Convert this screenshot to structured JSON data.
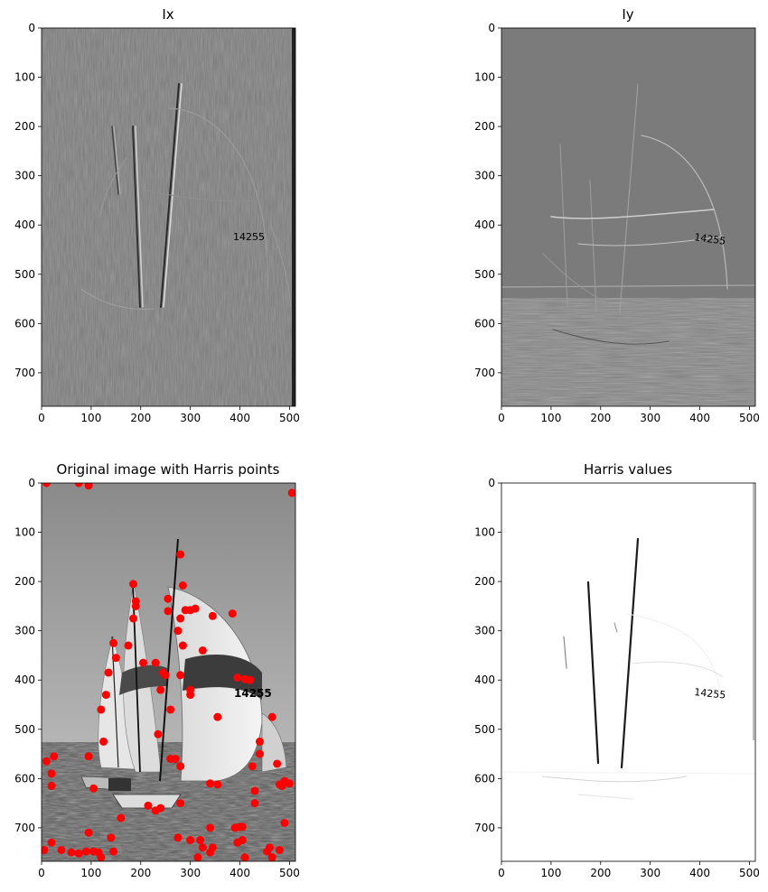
{
  "figure": {
    "panels": [
      {
        "id": "ix",
        "title": "Ix",
        "kind": "gradient-x",
        "x_range": [
          0,
          512
        ],
        "y_range": [
          0,
          768
        ],
        "x_ticks": [
          0,
          100,
          200,
          300,
          400,
          500
        ],
        "y_ticks": [
          0,
          100,
          200,
          300,
          400,
          500,
          600,
          700
        ]
      },
      {
        "id": "iy",
        "title": "Iy",
        "kind": "gradient-y",
        "x_range": [
          0,
          512
        ],
        "y_range": [
          0,
          768
        ],
        "x_ticks": [
          0,
          100,
          200,
          300,
          400,
          500
        ],
        "y_ticks": [
          0,
          100,
          200,
          300,
          400,
          500,
          600,
          700
        ]
      },
      {
        "id": "orig",
        "title": "Original image with Harris points",
        "kind": "original",
        "x_range": [
          0,
          512
        ],
        "y_range": [
          0,
          768
        ],
        "x_ticks": [
          0,
          100,
          200,
          300,
          400,
          500
        ],
        "y_ticks": [
          0,
          100,
          200,
          300,
          400,
          500,
          600,
          700
        ]
      },
      {
        "id": "harris",
        "title": "Harris values",
        "kind": "harris",
        "x_range": [
          0,
          512
        ],
        "y_range": [
          0,
          768
        ],
        "x_ticks": [
          0,
          100,
          200,
          300,
          400,
          500
        ],
        "y_ticks": [
          0,
          100,
          200,
          300,
          400,
          500,
          600,
          700
        ]
      }
    ]
  },
  "chart_data": {
    "type": "scatter",
    "series": [
      {
        "points": [
          [
            10,
            0
          ],
          [
            75,
            0
          ],
          [
            95,
            5
          ],
          [
            505,
            20
          ],
          [
            280,
            145
          ],
          [
            185,
            205
          ],
          [
            285,
            208
          ],
          [
            190,
            240
          ],
          [
            255,
            235
          ],
          [
            190,
            250
          ],
          [
            290,
            258
          ],
          [
            255,
            260
          ],
          [
            300,
            258
          ],
          [
            310,
            255
          ],
          [
            345,
            270
          ],
          [
            385,
            265
          ],
          [
            185,
            275
          ],
          [
            280,
            275
          ],
          [
            275,
            300
          ],
          [
            145,
            325
          ],
          [
            175,
            330
          ],
          [
            285,
            330
          ],
          [
            325,
            340
          ],
          [
            150,
            355
          ],
          [
            205,
            365
          ],
          [
            230,
            365
          ],
          [
            135,
            385
          ],
          [
            245,
            385
          ],
          [
            250,
            390
          ],
          [
            280,
            390
          ],
          [
            395,
            395
          ],
          [
            410,
            398
          ],
          [
            420,
            400
          ],
          [
            240,
            420
          ],
          [
            300,
            420
          ],
          [
            300,
            430
          ],
          [
            130,
            430
          ],
          [
            120,
            460
          ],
          [
            260,
            460
          ],
          [
            355,
            475
          ],
          [
            465,
            475
          ],
          [
            235,
            510
          ],
          [
            125,
            525
          ],
          [
            440,
            525
          ],
          [
            440,
            550
          ],
          [
            25,
            555
          ],
          [
            95,
            555
          ],
          [
            260,
            560
          ],
          [
            270,
            560
          ],
          [
            10,
            565
          ],
          [
            475,
            570
          ],
          [
            280,
            575
          ],
          [
            425,
            575
          ],
          [
            20,
            590
          ],
          [
            490,
            605
          ],
          [
            500,
            610
          ],
          [
            480,
            612
          ],
          [
            485,
            615
          ],
          [
            340,
            610
          ],
          [
            355,
            612
          ],
          [
            20,
            615
          ],
          [
            105,
            620
          ],
          [
            430,
            625
          ],
          [
            430,
            650
          ],
          [
            280,
            650
          ],
          [
            215,
            655
          ],
          [
            230,
            665
          ],
          [
            240,
            660
          ],
          [
            160,
            680
          ],
          [
            340,
            700
          ],
          [
            390,
            700
          ],
          [
            400,
            698
          ],
          [
            405,
            698
          ],
          [
            490,
            690
          ],
          [
            95,
            710
          ],
          [
            275,
            720
          ],
          [
            300,
            725
          ],
          [
            405,
            725
          ],
          [
            140,
            720
          ],
          [
            20,
            730
          ],
          [
            395,
            730
          ],
          [
            320,
            725
          ],
          [
            325,
            740
          ],
          [
            345,
            740
          ],
          [
            40,
            745
          ],
          [
            90,
            748
          ],
          [
            105,
            748
          ],
          [
            115,
            750
          ],
          [
            60,
            750
          ],
          [
            75,
            752
          ],
          [
            145,
            748
          ],
          [
            480,
            745
          ],
          [
            455,
            748
          ],
          [
            460,
            740
          ],
          [
            5,
            745
          ],
          [
            340,
            750
          ],
          [
            120,
            760
          ],
          [
            315,
            760
          ],
          [
            410,
            760
          ],
          [
            465,
            760
          ]
        ]
      }
    ]
  }
}
